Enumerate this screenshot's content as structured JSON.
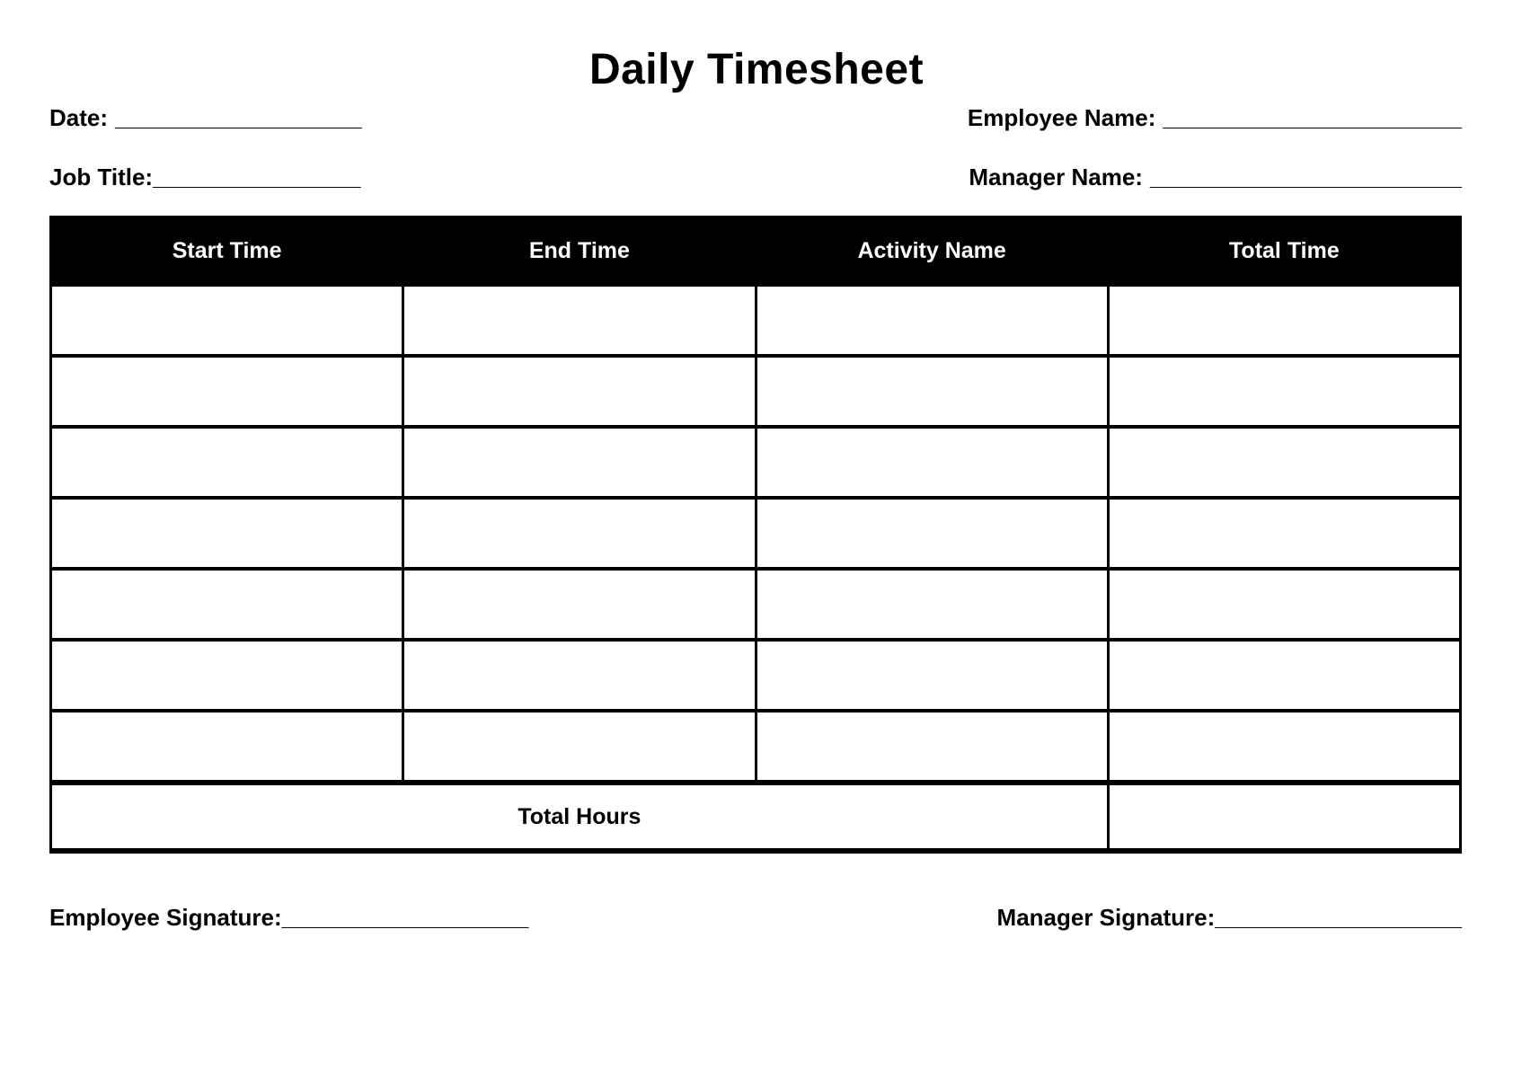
{
  "page": {
    "title": "Daily Timesheet"
  },
  "fields": {
    "date": {
      "label": "Date:",
      "line": "___________________"
    },
    "employee_name": {
      "label": "Employee Name:",
      "line": "_______________________"
    },
    "job_title": {
      "label": "Job Title:",
      "line": "________________"
    },
    "manager_name": {
      "label": "Manager Name:",
      "line": "________________________"
    }
  },
  "table": {
    "headers": [
      "Start Time",
      "End Time",
      "Activity Name",
      "Total Time"
    ],
    "rows": [
      [
        "",
        "",
        "",
        ""
      ],
      [
        "",
        "",
        "",
        ""
      ],
      [
        "",
        "",
        "",
        ""
      ],
      [
        "",
        "",
        "",
        ""
      ],
      [
        "",
        "",
        "",
        ""
      ],
      [
        "",
        "",
        "",
        ""
      ],
      [
        "",
        "",
        "",
        ""
      ]
    ],
    "footer": {
      "label": "Total Hours",
      "total_value": ""
    }
  },
  "signatures": {
    "employee": {
      "label": "Employee Signature:",
      "line": "___________________"
    },
    "manager": {
      "label": "Manager Signature:",
      "line": "___________________"
    }
  },
  "colors": {
    "page_bg": "#ffffff",
    "text": "#000000",
    "header_bg": "#000000",
    "header_text": "#ffffff",
    "border": "#000000"
  }
}
